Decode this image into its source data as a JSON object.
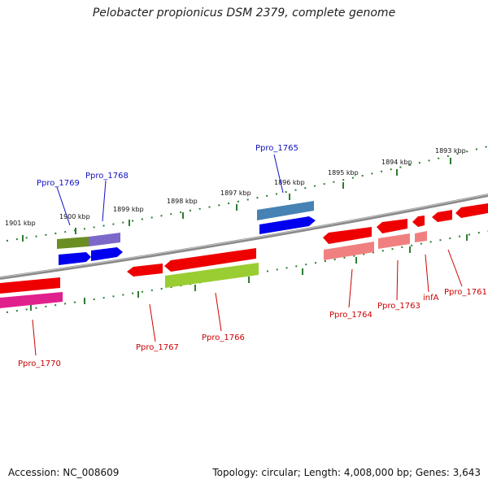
{
  "title": "Pelobacter propionicus DSM 2379, complete genome",
  "footer": {
    "accession": "Accession: NC_008609",
    "summary": "Topology: circular; Length: 4,008,000 bp; Genes: 3,643"
  },
  "colors": {
    "backbone": "#8a8a8a",
    "ticks": "#2e7d32",
    "label_top": "#1010c0",
    "label_bottom": "#cc0000"
  },
  "kbp_labels": [
    "1901 kbp",
    "1900 kbp",
    "1899 kbp",
    "1898 kbp",
    "1897 kbp",
    "1896 kbp",
    "1895 kbp",
    "1894 kbp",
    "1893 kbp"
  ],
  "gene_labels": {
    "ppro_1769": "Ppro_1769",
    "ppro_1768": "Ppro_1768",
    "ppro_1765": "Ppro_1765",
    "ppro_1770": "Ppro_1770",
    "ppro_1767": "Ppro_1767",
    "ppro_1766": "Ppro_1766",
    "ppro_1764": "Ppro_1764",
    "ppro_1763": "Ppro_1763",
    "infa": "infA",
    "ppro_1761": "Ppro_1761"
  }
}
